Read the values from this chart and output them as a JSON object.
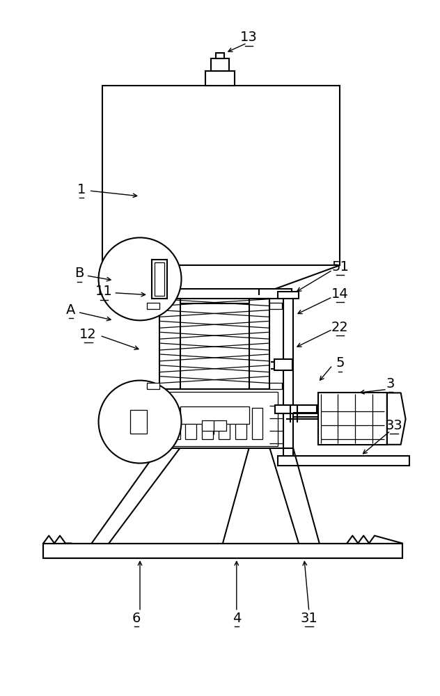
{
  "bg_color": "#ffffff",
  "line_color": "#000000",
  "lw": 1.5,
  "fig_width": 6.32,
  "fig_height": 10.0,
  "dpi": 100
}
